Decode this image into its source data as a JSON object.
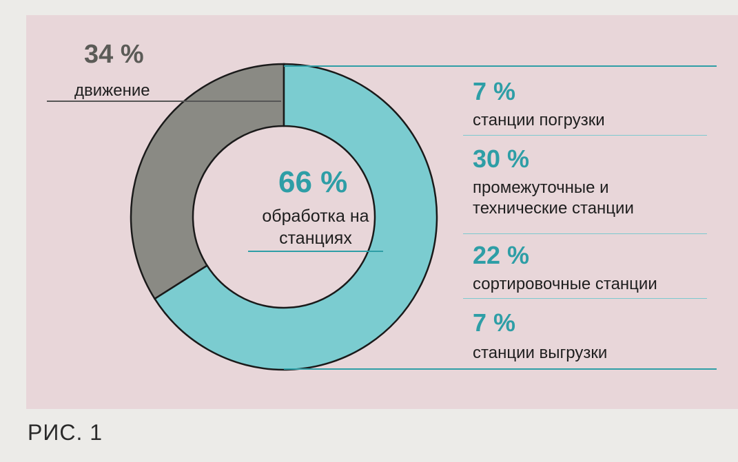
{
  "chart_data": {
    "type": "pie",
    "variant": "donut",
    "slices": [
      {
        "name": "движение",
        "value": 34,
        "color": "#8a8a84"
      },
      {
        "name": "обработка на станциях",
        "value": 66,
        "color": "#7bccd0"
      }
    ],
    "labels": {
      "motion": {
        "pct": "34 %",
        "text": "движение"
      },
      "center": {
        "pct": "66 %",
        "text": "обработка на станциях"
      }
    },
    "breakdown": [
      {
        "pct": "7 %",
        "value": 7,
        "text": "станции погрузки"
      },
      {
        "pct": "30 %",
        "value": 30,
        "text": "промежуточные и технические станции"
      },
      {
        "pct": "22 %",
        "value": 22,
        "text": "сортировочные станции"
      },
      {
        "pct": "7 %",
        "value": 7,
        "text": "станции выгрузки"
      }
    ],
    "colors": {
      "accent": "#2e9ea6",
      "panel": "#e8d6d9",
      "stroke": "#1a1a1a"
    }
  },
  "caption": "РИС. 1"
}
